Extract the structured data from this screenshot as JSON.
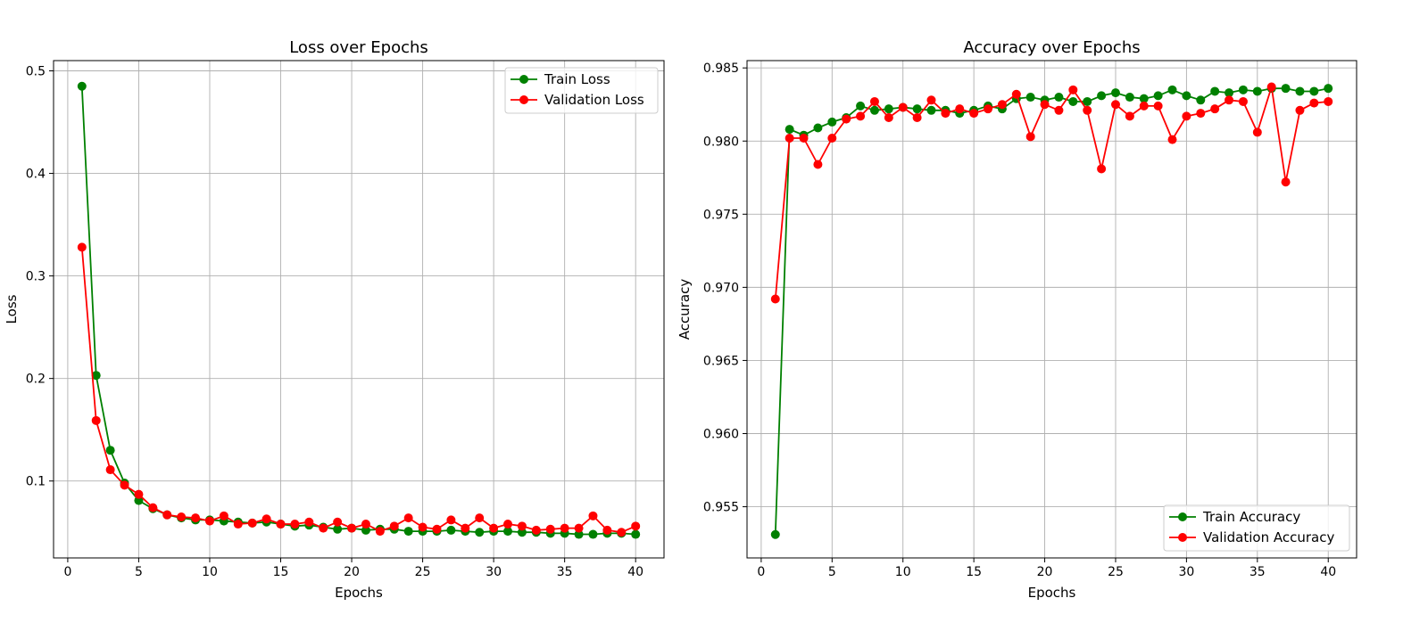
{
  "chart_data": [
    {
      "type": "line",
      "title": "Loss over Epochs",
      "xlabel": "Epochs",
      "ylabel": "Loss",
      "xlim": [
        -1,
        42
      ],
      "ylim": [
        0.025,
        0.51
      ],
      "xticks": [
        0,
        5,
        10,
        15,
        20,
        25,
        30,
        35,
        40
      ],
      "xtick_labels": [
        "0",
        "5",
        "10",
        "15",
        "20",
        "25",
        "30",
        "35",
        "40"
      ],
      "yticks": [
        0.1,
        0.2,
        0.3,
        0.4,
        0.5
      ],
      "ytick_labels": [
        "0.1",
        "0.2",
        "0.3",
        "0.4",
        "0.5"
      ],
      "grid": true,
      "legend_position": "top-right",
      "x": [
        1,
        2,
        3,
        4,
        5,
        6,
        7,
        8,
        9,
        10,
        11,
        12,
        13,
        14,
        15,
        16,
        17,
        18,
        19,
        20,
        21,
        22,
        23,
        24,
        25,
        26,
        27,
        28,
        29,
        30,
        31,
        32,
        33,
        34,
        35,
        36,
        37,
        38,
        39,
        40
      ],
      "series": [
        {
          "name": "Train Loss",
          "color": "#008000",
          "values": [
            0.485,
            0.203,
            0.13,
            0.098,
            0.081,
            0.073,
            0.067,
            0.064,
            0.062,
            0.062,
            0.061,
            0.06,
            0.059,
            0.06,
            0.058,
            0.056,
            0.057,
            0.055,
            0.053,
            0.054,
            0.052,
            0.053,
            0.053,
            0.051,
            0.051,
            0.051,
            0.052,
            0.051,
            0.05,
            0.051,
            0.051,
            0.05,
            0.05,
            0.049,
            0.049,
            0.048,
            0.048,
            0.049,
            0.049,
            0.048
          ]
        },
        {
          "name": "Validation Loss",
          "color": "#ff0000",
          "values": [
            0.328,
            0.159,
            0.111,
            0.096,
            0.087,
            0.074,
            0.067,
            0.065,
            0.064,
            0.061,
            0.066,
            0.058,
            0.059,
            0.063,
            0.058,
            0.058,
            0.06,
            0.054,
            0.06,
            0.054,
            0.058,
            0.051,
            0.056,
            0.064,
            0.055,
            0.053,
            0.062,
            0.054,
            0.064,
            0.054,
            0.058,
            0.056,
            0.052,
            0.053,
            0.054,
            0.054,
            0.066,
            0.052,
            0.05,
            0.056
          ]
        }
      ]
    },
    {
      "type": "line",
      "title": "Accuracy over Epochs",
      "xlabel": "Epochs",
      "ylabel": "Accuracy",
      "xlim": [
        -1,
        42
      ],
      "ylim": [
        0.9515,
        0.9855
      ],
      "xticks": [
        0,
        5,
        10,
        15,
        20,
        25,
        30,
        35,
        40
      ],
      "xtick_labels": [
        "0",
        "5",
        "10",
        "15",
        "20",
        "25",
        "30",
        "35",
        "40"
      ],
      "yticks": [
        0.955,
        0.96,
        0.965,
        0.97,
        0.975,
        0.98,
        0.985
      ],
      "ytick_labels": [
        "0.955",
        "0.960",
        "0.965",
        "0.970",
        "0.975",
        "0.980",
        "0.985"
      ],
      "grid": true,
      "legend_position": "bottom-right",
      "x": [
        1,
        2,
        3,
        4,
        5,
        6,
        7,
        8,
        9,
        10,
        11,
        12,
        13,
        14,
        15,
        16,
        17,
        18,
        19,
        20,
        21,
        22,
        23,
        24,
        25,
        26,
        27,
        28,
        29,
        30,
        31,
        32,
        33,
        34,
        35,
        36,
        37,
        38,
        39,
        40
      ],
      "series": [
        {
          "name": "Train Accuracy",
          "color": "#008000",
          "values": [
            0.9531,
            0.9808,
            0.9804,
            0.9809,
            0.9813,
            0.9816,
            0.9824,
            0.9821,
            0.9822,
            0.9823,
            0.9822,
            0.9821,
            0.9821,
            0.9819,
            0.9821,
            0.9824,
            0.9822,
            0.9829,
            0.983,
            0.9828,
            0.983,
            0.9827,
            0.9827,
            0.9831,
            0.9833,
            0.983,
            0.9829,
            0.9831,
            0.9835,
            0.9831,
            0.9828,
            0.9834,
            0.9833,
            0.9835,
            0.9834,
            0.9836,
            0.9836,
            0.9834,
            0.9834,
            0.9836
          ]
        },
        {
          "name": "Validation Accuracy",
          "color": "#ff0000",
          "values": [
            0.9692,
            0.9802,
            0.9802,
            0.9784,
            0.9802,
            0.9815,
            0.9817,
            0.9827,
            0.9816,
            0.9823,
            0.9816,
            0.9828,
            0.9819,
            0.9822,
            0.9819,
            0.9822,
            0.9825,
            0.9832,
            0.9803,
            0.9825,
            0.9821,
            0.9835,
            0.9821,
            0.9781,
            0.9825,
            0.9817,
            0.9824,
            0.9824,
            0.9801,
            0.9817,
            0.9819,
            0.9822,
            0.9828,
            0.9827,
            0.9806,
            0.9837,
            0.9772,
            0.9821,
            0.9826,
            0.9827
          ]
        }
      ]
    }
  ]
}
